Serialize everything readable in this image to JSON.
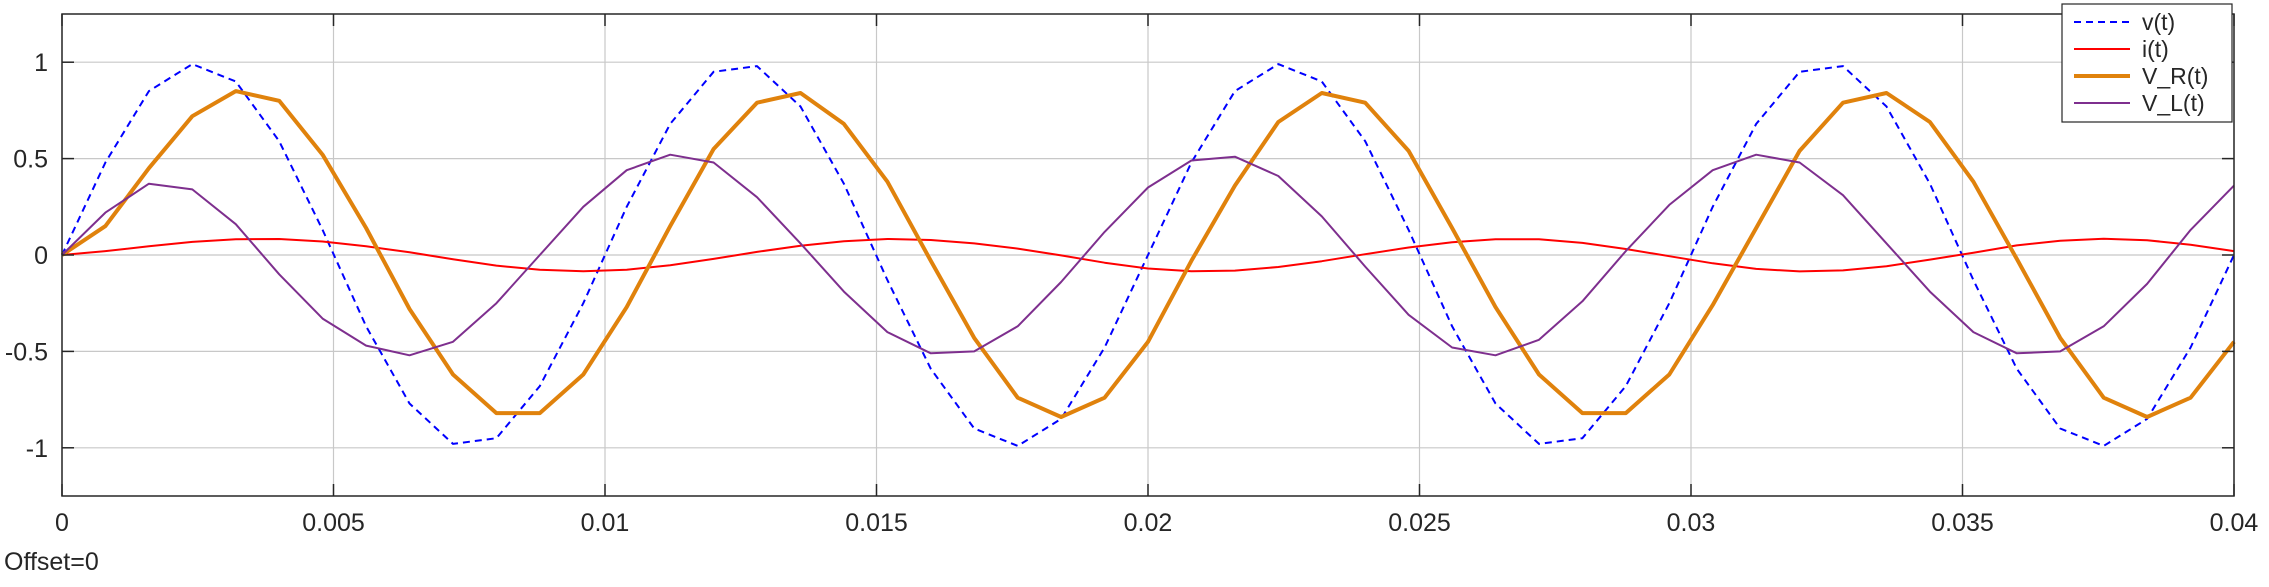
{
  "offset_text": "Offset=0",
  "chart_data": {
    "type": "line",
    "xlim": [
      0,
      0.04
    ],
    "ylim": [
      -1.25,
      1.25
    ],
    "grid": true,
    "legend_position": "top-right",
    "x_ticks": [
      0,
      0.005,
      0.01,
      0.015,
      0.02,
      0.025,
      0.03,
      0.035,
      0.04
    ],
    "x_tick_labels": [
      "0",
      "0.005",
      "0.01",
      "0.015",
      "0.02",
      "0.025",
      "0.03",
      "0.035",
      "0.04"
    ],
    "y_ticks": [
      -1,
      -0.5,
      0,
      0.5,
      1
    ],
    "y_tick_labels": [
      "-1",
      "-0.5",
      "0",
      "0.5",
      "1"
    ],
    "x": [
      0,
      0.0008,
      0.0016,
      0.0024,
      0.0032,
      0.004,
      0.0048,
      0.0056,
      0.0064,
      0.0072,
      0.008,
      0.0088,
      0.0096,
      0.0104,
      0.0112,
      0.012,
      0.0128,
      0.0136,
      0.0144,
      0.0152,
      0.016,
      0.0168,
      0.0176,
      0.0184,
      0.0192,
      0.02,
      0.0208,
      0.0216,
      0.0224,
      0.0232,
      0.024,
      0.0248,
      0.0256,
      0.0264,
      0.0272,
      0.028,
      0.0288,
      0.0296,
      0.0304,
      0.0312,
      0.032,
      0.0328,
      0.0336,
      0.0344,
      0.0352,
      0.036,
      0.0368,
      0.0376,
      0.0384,
      0.0392,
      0.04
    ],
    "series": [
      {
        "name": "v(t)",
        "color": "#0000ff",
        "dash": "dashed",
        "values": [
          0,
          0.48,
          0.85,
          0.99,
          0.9,
          0.59,
          0.13,
          -0.37,
          -0.77,
          -0.98,
          -0.95,
          -0.68,
          -0.25,
          0.25,
          0.68,
          0.95,
          0.98,
          0.77,
          0.37,
          -0.13,
          -0.59,
          -0.9,
          -0.99,
          -0.85,
          -0.48,
          0,
          0.48,
          0.85,
          0.99,
          0.9,
          0.59,
          0.13,
          -0.37,
          -0.77,
          -0.98,
          -0.95,
          -0.68,
          -0.25,
          0.25,
          0.68,
          0.95,
          0.98,
          0.77,
          0.37,
          -0.13,
          -0.59,
          -0.9,
          -0.99,
          -0.85,
          -0.48,
          0
        ]
      },
      {
        "name": "i(t)",
        "color": "#ff0000",
        "dash": "solid",
        "values": [
          0,
          0.02,
          0.045,
          0.068,
          0.082,
          0.083,
          0.07,
          0.045,
          0.014,
          -0.022,
          -0.055,
          -0.077,
          -0.084,
          -0.076,
          -0.053,
          -0.02,
          0.016,
          0.048,
          0.071,
          0.083,
          0.078,
          0.06,
          0.033,
          -0.002,
          -0.04,
          -0.07,
          -0.084,
          -0.081,
          -0.062,
          -0.032,
          0.004,
          0.039,
          0.066,
          0.082,
          0.082,
          0.063,
          0.031,
          -0.006,
          -0.043,
          -0.072,
          -0.085,
          -0.08,
          -0.058,
          -0.024,
          0.012,
          0.05,
          0.074,
          0.084,
          0.077,
          0.053,
          0.02
        ]
      },
      {
        "name": "V_R(t)",
        "color": "#e0820c",
        "dash": "solid",
        "values": [
          0,
          0.15,
          0.45,
          0.72,
          0.85,
          0.8,
          0.52,
          0.14,
          -0.28,
          -0.62,
          -0.82,
          -0.82,
          -0.62,
          -0.27,
          0.15,
          0.55,
          0.79,
          0.84,
          0.68,
          0.38,
          -0.03,
          -0.43,
          -0.74,
          -0.84,
          -0.74,
          -0.45,
          -0.03,
          0.36,
          0.69,
          0.84,
          0.79,
          0.54,
          0.14,
          -0.27,
          -0.62,
          -0.82,
          -0.82,
          -0.62,
          -0.26,
          0.14,
          0.54,
          0.79,
          0.84,
          0.69,
          0.38,
          -0.02,
          -0.43,
          -0.74,
          -0.84,
          -0.74,
          -0.45
        ]
      },
      {
        "name": "V_L(t)",
        "color": "#7e2f8e",
        "dash": "solid",
        "values": [
          0,
          0.22,
          0.37,
          0.34,
          0.16,
          -0.1,
          -0.33,
          -0.47,
          -0.52,
          -0.45,
          -0.25,
          0.0,
          0.25,
          0.44,
          0.52,
          0.48,
          0.3,
          0.06,
          -0.19,
          -0.4,
          -0.51,
          -0.5,
          -0.37,
          -0.14,
          0.12,
          0.35,
          0.49,
          0.51,
          0.41,
          0.2,
          -0.06,
          -0.31,
          -0.48,
          -0.52,
          -0.44,
          -0.24,
          0.02,
          0.26,
          0.44,
          0.52,
          0.48,
          0.31,
          0.06,
          -0.19,
          -0.4,
          -0.51,
          -0.5,
          -0.37,
          -0.15,
          0.13,
          0.36
        ]
      }
    ]
  }
}
